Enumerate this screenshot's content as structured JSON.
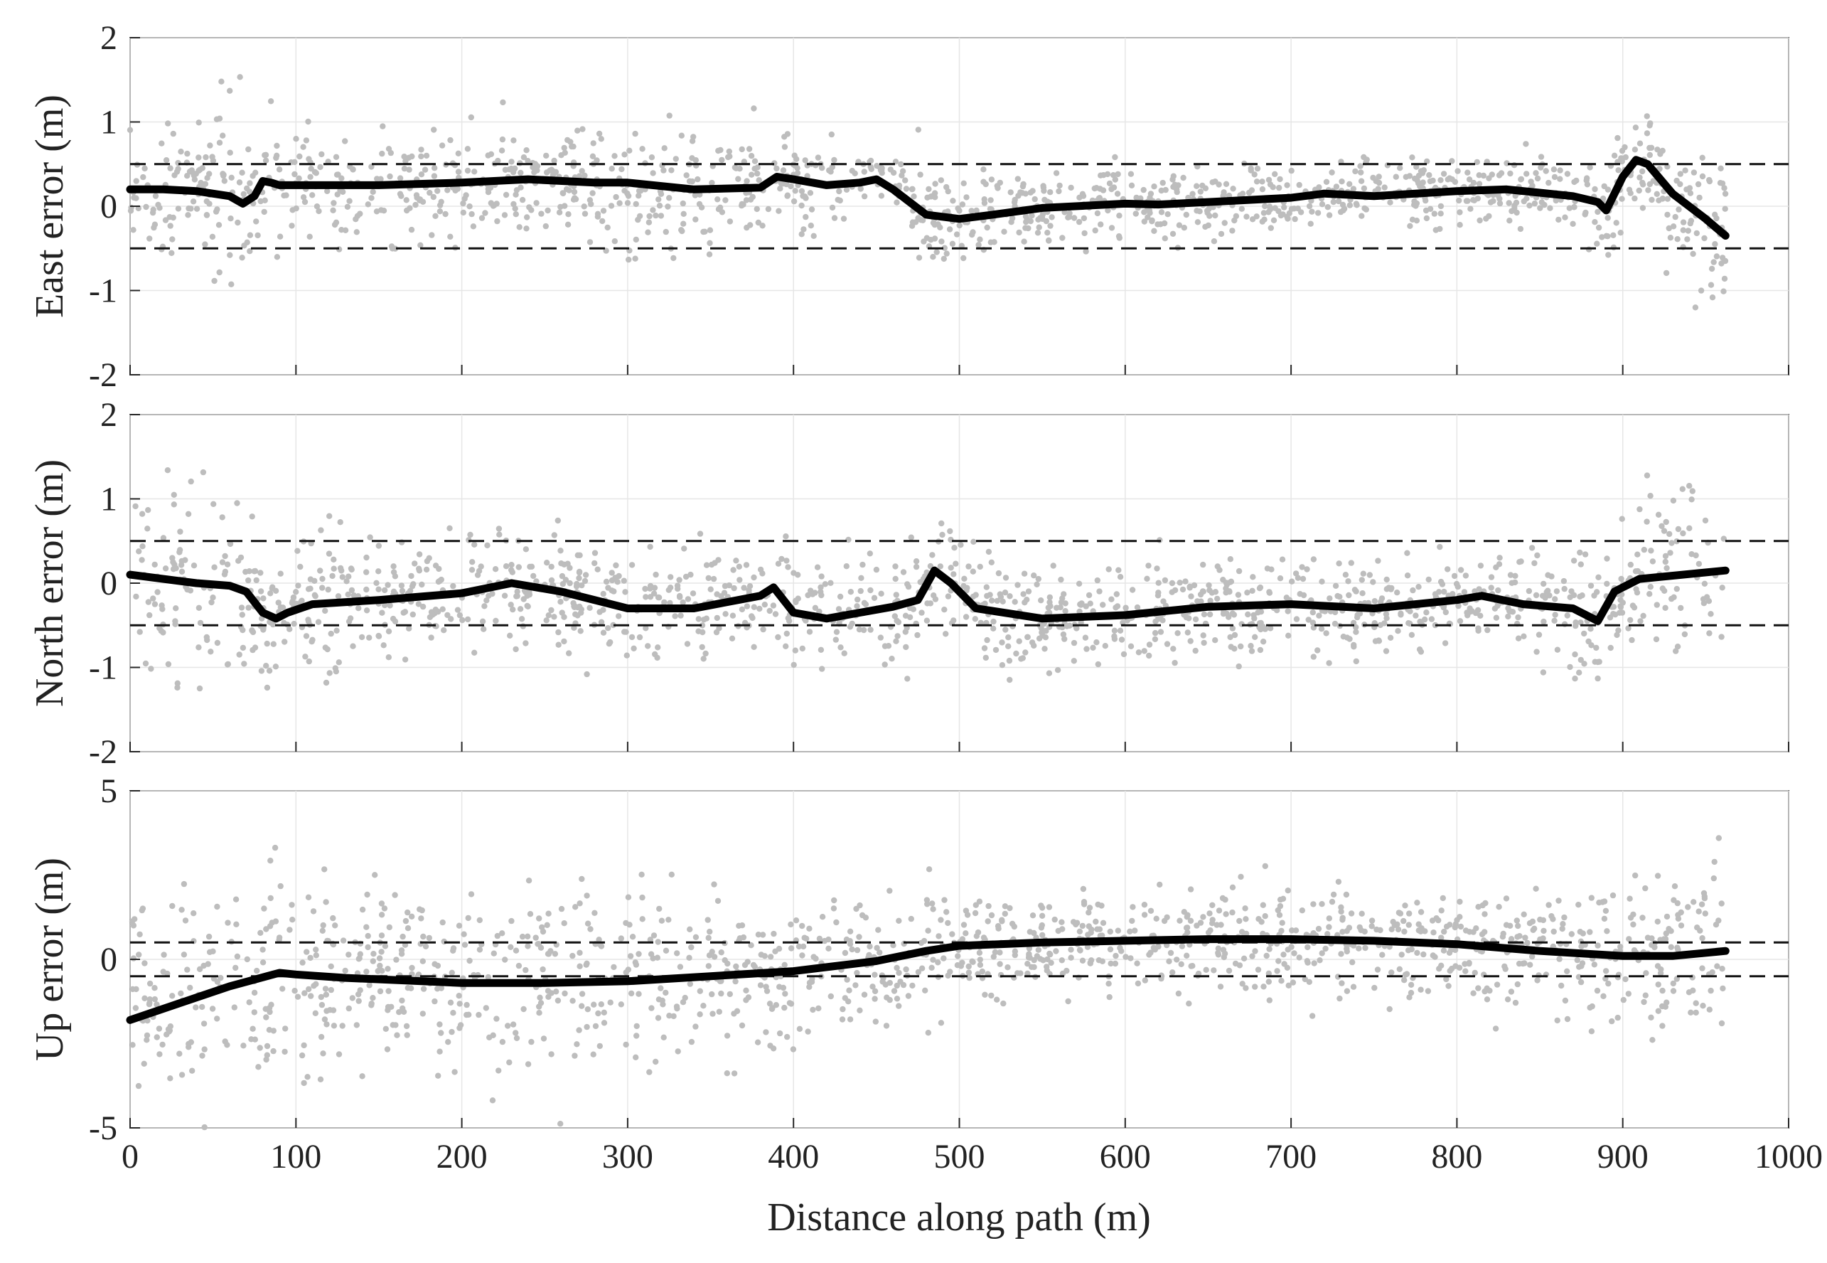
{
  "chart_data": [
    {
      "type": "scatter",
      "ylabel": "East error (m)",
      "xlabel": "",
      "xlim": [
        0,
        1000
      ],
      "ylim": [
        -2,
        2
      ],
      "x_ticks": [
        "0",
        "100",
        "200",
        "300",
        "400",
        "500",
        "600",
        "700",
        "800",
        "900",
        "1000"
      ],
      "y_ticks": [
        "2",
        "1",
        "0",
        "-1",
        "-2"
      ],
      "grid": true,
      "bounds": [
        0.5,
        -0.5
      ],
      "series": [
        {
          "kind": "raw-scatter",
          "color": "#bdbdbd",
          "noise": [
            [
              0,
              0.35
            ],
            [
              50,
              0.45
            ],
            [
              100,
              0.35
            ],
            [
              150,
              0.3
            ],
            [
              200,
              0.3
            ],
            [
              250,
              0.3
            ],
            [
              300,
              0.4
            ],
            [
              350,
              0.35
            ],
            [
              400,
              0.25
            ],
            [
              450,
              0.25
            ],
            [
              500,
              0.25
            ],
            [
              550,
              0.2
            ],
            [
              600,
              0.25
            ],
            [
              650,
              0.2
            ],
            [
              700,
              0.2
            ],
            [
              750,
              0.2
            ],
            [
              800,
              0.2
            ],
            [
              850,
              0.2
            ],
            [
              900,
              0.3
            ],
            [
              962,
              0.45
            ]
          ]
        },
        {
          "kind": "smoothed",
          "color": "#000000",
          "x": [
            0,
            20,
            40,
            60,
            68,
            75,
            80,
            85,
            90,
            100,
            150,
            200,
            240,
            280,
            300,
            340,
            380,
            390,
            400,
            420,
            440,
            450,
            460,
            480,
            500,
            520,
            550,
            600,
            620,
            650,
            700,
            720,
            750,
            800,
            830,
            870,
            885,
            890,
            900,
            908,
            915,
            930,
            950,
            962
          ],
          "y": [
            0.2,
            0.2,
            0.18,
            0.12,
            0.03,
            0.12,
            0.3,
            0.28,
            0.25,
            0.25,
            0.25,
            0.28,
            0.32,
            0.28,
            0.28,
            0.2,
            0.22,
            0.35,
            0.32,
            0.25,
            0.28,
            0.32,
            0.2,
            -0.1,
            -0.15,
            -0.1,
            -0.02,
            0.03,
            0.02,
            0.05,
            0.1,
            0.15,
            0.12,
            0.18,
            0.2,
            0.12,
            0.05,
            -0.05,
            0.35,
            0.55,
            0.5,
            0.15,
            -0.15,
            -0.35
          ]
        }
      ]
    },
    {
      "type": "scatter",
      "ylabel": "North error (m)",
      "xlabel": "",
      "xlim": [
        0,
        1000
      ],
      "ylim": [
        -2,
        2
      ],
      "x_ticks": [
        "0",
        "100",
        "200",
        "300",
        "400",
        "500",
        "600",
        "700",
        "800",
        "900",
        "1000"
      ],
      "y_ticks": [
        "2",
        "1",
        "0",
        "-1",
        "-2"
      ],
      "grid": true,
      "bounds": [
        0.5,
        -0.5
      ],
      "series": [
        {
          "kind": "raw-scatter",
          "color": "#bdbdbd",
          "noise": [
            [
              0,
              0.5
            ],
            [
              50,
              0.6
            ],
            [
              100,
              0.45
            ],
            [
              150,
              0.4
            ],
            [
              200,
              0.35
            ],
            [
              250,
              0.3
            ],
            [
              300,
              0.4
            ],
            [
              350,
              0.3
            ],
            [
              400,
              0.3
            ],
            [
              450,
              0.3
            ],
            [
              500,
              0.3
            ],
            [
              550,
              0.3
            ],
            [
              600,
              0.3
            ],
            [
              650,
              0.3
            ],
            [
              700,
              0.3
            ],
            [
              750,
              0.3
            ],
            [
              800,
              0.3
            ],
            [
              850,
              0.3
            ],
            [
              900,
              0.35
            ],
            [
              962,
              0.55
            ]
          ]
        },
        {
          "kind": "smoothed",
          "color": "#000000",
          "x": [
            0,
            20,
            40,
            60,
            70,
            80,
            88,
            95,
            110,
            150,
            200,
            230,
            260,
            300,
            340,
            380,
            388,
            400,
            420,
            440,
            460,
            475,
            485,
            495,
            510,
            550,
            600,
            650,
            700,
            750,
            800,
            815,
            840,
            870,
            885,
            895,
            910,
            962
          ],
          "y": [
            0.1,
            0.05,
            0.0,
            -0.03,
            -0.1,
            -0.35,
            -0.42,
            -0.35,
            -0.25,
            -0.2,
            -0.12,
            0.0,
            -0.1,
            -0.3,
            -0.3,
            -0.15,
            -0.05,
            -0.35,
            -0.42,
            -0.35,
            -0.28,
            -0.2,
            0.15,
            0.0,
            -0.3,
            -0.42,
            -0.38,
            -0.28,
            -0.25,
            -0.3,
            -0.2,
            -0.15,
            -0.25,
            -0.3,
            -0.45,
            -0.1,
            0.05,
            0.15
          ]
        }
      ]
    },
    {
      "type": "scatter",
      "ylabel": "Up error (m)",
      "xlabel": "Distance along path (m)",
      "xlim": [
        0,
        1000
      ],
      "ylim": [
        -5,
        5
      ],
      "x_ticks": [
        "0",
        "100",
        "200",
        "300",
        "400",
        "500",
        "600",
        "700",
        "800",
        "900",
        "1000"
      ],
      "y_ticks": [
        "5",
        "0",
        "-5"
      ],
      "grid": true,
      "bounds": [
        0.5,
        -0.5
      ],
      "series": [
        {
          "kind": "raw-scatter",
          "color": "#bdbdbd",
          "noise": [
            [
              0,
              1.4
            ],
            [
              50,
              1.6
            ],
            [
              100,
              1.5
            ],
            [
              150,
              1.4
            ],
            [
              200,
              1.3
            ],
            [
              250,
              1.2
            ],
            [
              300,
              1.4
            ],
            [
              350,
              1.1
            ],
            [
              400,
              1.0
            ],
            [
              450,
              0.9
            ],
            [
              500,
              0.8
            ],
            [
              550,
              0.7
            ],
            [
              600,
              0.8
            ],
            [
              650,
              0.8
            ],
            [
              700,
              0.8
            ],
            [
              750,
              0.8
            ],
            [
              800,
              0.8
            ],
            [
              850,
              0.9
            ],
            [
              900,
              1.0
            ],
            [
              962,
              1.3
            ]
          ]
        },
        {
          "kind": "smoothed",
          "color": "#000000",
          "x": [
            0,
            30,
            60,
            90,
            100,
            130,
            200,
            250,
            300,
            350,
            400,
            450,
            480,
            500,
            550,
            600,
            650,
            700,
            750,
            800,
            850,
            900,
            930,
            962
          ],
          "y": [
            -1.8,
            -1.3,
            -0.8,
            -0.4,
            -0.45,
            -0.55,
            -0.7,
            -0.7,
            -0.65,
            -0.5,
            -0.35,
            -0.05,
            0.25,
            0.4,
            0.5,
            0.55,
            0.6,
            0.6,
            0.55,
            0.45,
            0.25,
            0.1,
            0.1,
            0.25
          ]
        }
      ]
    }
  ]
}
